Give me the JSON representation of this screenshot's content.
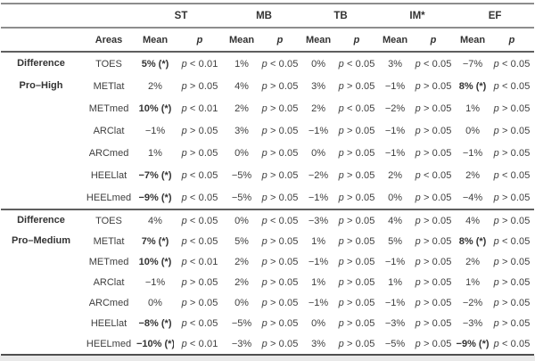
{
  "table": {
    "conditions": [
      "ST",
      "MB",
      "TB",
      "IM*",
      "EF"
    ],
    "col_headers": {
      "areas": "Areas",
      "mean": "Mean",
      "p": "p"
    },
    "sections": [
      {
        "label_lines": [
          "Difference",
          "Pro–High"
        ],
        "rows": [
          {
            "area": "TOES",
            "cells": [
              {
                "mean": "5% (*)",
                "bold": true,
                "p": "p < 0.01"
              },
              {
                "mean": "1%",
                "bold": false,
                "p": "p < 0.05"
              },
              {
                "mean": "0%",
                "bold": false,
                "p": "p < 0.05"
              },
              {
                "mean": "3%",
                "bold": false,
                "p": "p < 0.05"
              },
              {
                "mean": "−7%",
                "bold": false,
                "p": "p < 0.05"
              }
            ]
          },
          {
            "area": "METlat",
            "cells": [
              {
                "mean": "2%",
                "bold": false,
                "p": "p > 0.05"
              },
              {
                "mean": "4%",
                "bold": false,
                "p": "p > 0.05"
              },
              {
                "mean": "3%",
                "bold": false,
                "p": "p > 0.05"
              },
              {
                "mean": "−1%",
                "bold": false,
                "p": "p > 0.05"
              },
              {
                "mean": "8% (*)",
                "bold": true,
                "p": "p < 0.05"
              }
            ]
          },
          {
            "area": "METmed",
            "cells": [
              {
                "mean": "10% (*)",
                "bold": true,
                "p": "p < 0.01"
              },
              {
                "mean": "2%",
                "bold": false,
                "p": "p > 0.05"
              },
              {
                "mean": "2%",
                "bold": false,
                "p": "p < 0.05"
              },
              {
                "mean": "−2%",
                "bold": false,
                "p": "p > 0.05"
              },
              {
                "mean": "1%",
                "bold": false,
                "p": "p > 0.05"
              }
            ]
          },
          {
            "area": "ARClat",
            "cells": [
              {
                "mean": "−1%",
                "bold": false,
                "p": "p > 0.05"
              },
              {
                "mean": "3%",
                "bold": false,
                "p": "p > 0.05"
              },
              {
                "mean": "−1%",
                "bold": false,
                "p": "p > 0.05"
              },
              {
                "mean": "−1%",
                "bold": false,
                "p": "p > 0.05"
              },
              {
                "mean": "0%",
                "bold": false,
                "p": "p > 0.05"
              }
            ]
          },
          {
            "area": "ARCmed",
            "cells": [
              {
                "mean": "1%",
                "bold": false,
                "p": "p > 0.05"
              },
              {
                "mean": "0%",
                "bold": false,
                "p": "p > 0.05"
              },
              {
                "mean": "0%",
                "bold": false,
                "p": "p > 0.05"
              },
              {
                "mean": "−1%",
                "bold": false,
                "p": "p > 0.05"
              },
              {
                "mean": "−1%",
                "bold": false,
                "p": "p > 0.05"
              }
            ]
          },
          {
            "area": "HEELlat",
            "cells": [
              {
                "mean": "−7% (*)",
                "bold": true,
                "p": "p < 0.05"
              },
              {
                "mean": "−5%",
                "bold": false,
                "p": "p > 0.05"
              },
              {
                "mean": "−2%",
                "bold": false,
                "p": "p > 0.05"
              },
              {
                "mean": "2%",
                "bold": false,
                "p": "p < 0.05"
              },
              {
                "mean": "2%",
                "bold": false,
                "p": "p < 0.05"
              }
            ]
          },
          {
            "area": "HEELmed",
            "cells": [
              {
                "mean": "−9% (*)",
                "bold": true,
                "p": "p < 0.05"
              },
              {
                "mean": "−5%",
                "bold": false,
                "p": "p > 0.05"
              },
              {
                "mean": "−1%",
                "bold": false,
                "p": "p > 0.05"
              },
              {
                "mean": "0%",
                "bold": false,
                "p": "p > 0.05"
              },
              {
                "mean": "−4%",
                "bold": false,
                "p": "p > 0.05"
              }
            ]
          }
        ]
      },
      {
        "label_lines": [
          "Difference",
          "Pro–Medium"
        ],
        "rows": [
          {
            "area": "TOES",
            "cells": [
              {
                "mean": "4%",
                "bold": false,
                "p": "p < 0.05"
              },
              {
                "mean": "0%",
                "bold": false,
                "p": "p < 0.05"
              },
              {
                "mean": "−3%",
                "bold": false,
                "p": "p > 0.05"
              },
              {
                "mean": "4%",
                "bold": false,
                "p": "p > 0.05"
              },
              {
                "mean": "4%",
                "bold": false,
                "p": "p > 0.05"
              }
            ]
          },
          {
            "area": "METlat",
            "cells": [
              {
                "mean": "7% (*)",
                "bold": true,
                "p": "p < 0.05"
              },
              {
                "mean": "5%",
                "bold": false,
                "p": "p > 0.05"
              },
              {
                "mean": "1%",
                "bold": false,
                "p": "p > 0.05"
              },
              {
                "mean": "5%",
                "bold": false,
                "p": "p > 0.05"
              },
              {
                "mean": "8% (*)",
                "bold": true,
                "p": "p < 0.05"
              }
            ]
          },
          {
            "area": "METmed",
            "cells": [
              {
                "mean": "10% (*)",
                "bold": true,
                "p": "p < 0.01"
              },
              {
                "mean": "2%",
                "bold": false,
                "p": "p > 0.05"
              },
              {
                "mean": "−1%",
                "bold": false,
                "p": "p > 0.05"
              },
              {
                "mean": "−1%",
                "bold": false,
                "p": "p > 0.05"
              },
              {
                "mean": "2%",
                "bold": false,
                "p": "p > 0.05"
              }
            ]
          },
          {
            "area": "ARClat",
            "cells": [
              {
                "mean": "−1%",
                "bold": false,
                "p": "p > 0.05"
              },
              {
                "mean": "2%",
                "bold": false,
                "p": "p > 0.05"
              },
              {
                "mean": "1%",
                "bold": false,
                "p": "p > 0.05"
              },
              {
                "mean": "1%",
                "bold": false,
                "p": "p > 0.05"
              },
              {
                "mean": "1%",
                "bold": false,
                "p": "p > 0.05"
              }
            ]
          },
          {
            "area": "ARCmed",
            "cells": [
              {
                "mean": "0%",
                "bold": false,
                "p": "p > 0.05"
              },
              {
                "mean": "0%",
                "bold": false,
                "p": "p > 0.05"
              },
              {
                "mean": "−1%",
                "bold": false,
                "p": "p > 0.05"
              },
              {
                "mean": "−1%",
                "bold": false,
                "p": "p > 0.05"
              },
              {
                "mean": "−2%",
                "bold": false,
                "p": "p > 0.05"
              }
            ]
          },
          {
            "area": "HEELlat",
            "cells": [
              {
                "mean": "−8% (*)",
                "bold": true,
                "p": "p < 0.05"
              },
              {
                "mean": "−5%",
                "bold": false,
                "p": "p > 0.05"
              },
              {
                "mean": "0%",
                "bold": false,
                "p": "p > 0.05"
              },
              {
                "mean": "−3%",
                "bold": false,
                "p": "p > 0.05"
              },
              {
                "mean": "−3%",
                "bold": false,
                "p": "p > 0.05"
              }
            ]
          },
          {
            "area": "HEELmed",
            "cells": [
              {
                "mean": "−10% (*)",
                "bold": true,
                "p": "p < 0.01"
              },
              {
                "mean": "−3%",
                "bold": false,
                "p": "p > 0.05"
              },
              {
                "mean": "3%",
                "bold": false,
                "p": "p > 0.05"
              },
              {
                "mean": "−5%",
                "bold": false,
                "p": "p > 0.05"
              },
              {
                "mean": "−9% (*)",
                "bold": true,
                "p": "p < 0.05"
              }
            ]
          }
        ]
      }
    ]
  }
}
